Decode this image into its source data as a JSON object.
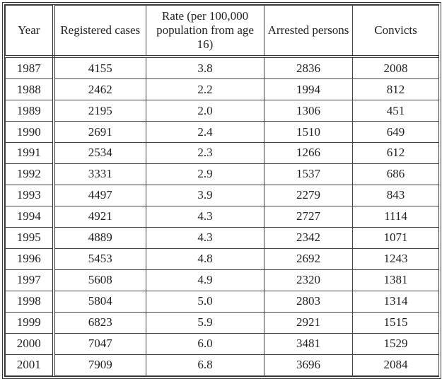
{
  "table": {
    "header": [
      "Year",
      "Registered cases",
      "Rate (per 100,000 population from age 16)",
      "Arrested persons",
      "Convicts"
    ],
    "rows": [
      [
        "1987",
        "4155",
        "3.8",
        "2836",
        "2008"
      ],
      [
        "1988",
        "2462",
        "2.2",
        "1994",
        "812"
      ],
      [
        "1989",
        "2195",
        "2.0",
        "1306",
        "451"
      ],
      [
        "1990",
        "2691",
        "2.4",
        "1510",
        "649"
      ],
      [
        "1991",
        "2534",
        "2.3",
        "1266",
        "612"
      ],
      [
        "1992",
        "3331",
        "2.9",
        "1537",
        "686"
      ],
      [
        "1993",
        "4497",
        "3.9",
        "2279",
        "843"
      ],
      [
        "1994",
        "4921",
        "4.3",
        "2727",
        "1114"
      ],
      [
        "1995",
        "4889",
        "4.3",
        "2342",
        "1071"
      ],
      [
        "1996",
        "5453",
        "4.8",
        "2692",
        "1243"
      ],
      [
        "1997",
        "5608",
        "4.9",
        "2320",
        "1381"
      ],
      [
        "1998",
        "5804",
        "5.0",
        "2803",
        "1314"
      ],
      [
        "1999",
        "6823",
        "5.9",
        "2921",
        "1515"
      ],
      [
        "2000",
        "7047",
        "6.0",
        "3481",
        "1529"
      ],
      [
        "2001",
        "7909",
        "6.8",
        "3696",
        "2084"
      ]
    ]
  }
}
